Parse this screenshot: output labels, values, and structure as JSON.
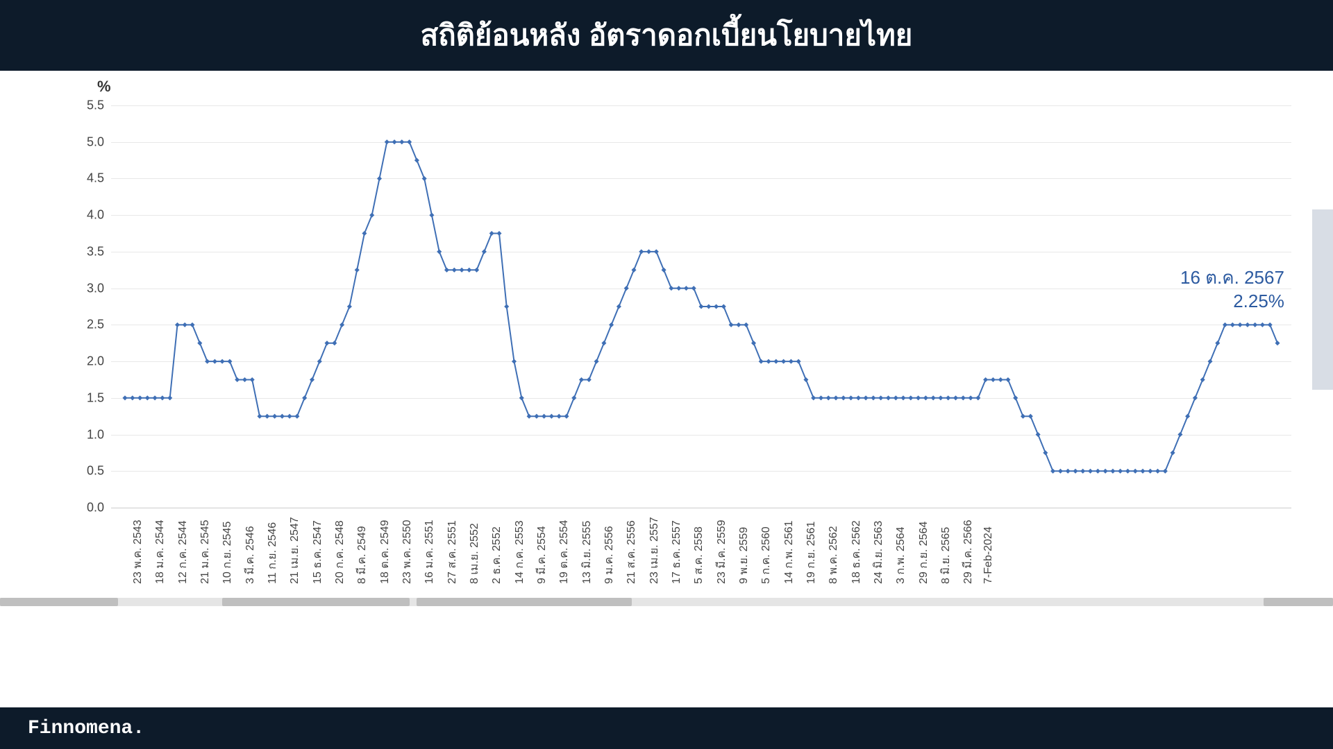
{
  "header": {
    "title": "สถิติย้อนหลัง อัตราดอกเบี้ยนโยบายไทย"
  },
  "footer": {
    "brand": "Finnomena."
  },
  "annotation": {
    "line1": "16 ต.ค. 2567",
    "line2": "2.25%"
  },
  "chart": {
    "type": "line",
    "y_unit": "%",
    "ylim": [
      0.0,
      5.5
    ],
    "ytick_step": 0.5,
    "y_ticks": [
      0.0,
      0.5,
      1.0,
      1.5,
      2.0,
      2.5,
      3.0,
      3.5,
      4.0,
      4.5,
      5.0,
      5.5
    ],
    "background_color": "#ffffff",
    "grid_color": "#e8e8e8",
    "line_color": "#3f6fb5",
    "marker_color": "#3f6fb5",
    "marker_type": "diamond",
    "marker_size": 5,
    "line_width": 2,
    "annotation_color": "#2c5aa0",
    "title_fontsize": 42,
    "label_fontsize": 18,
    "x_labels": [
      "23 พ.ค. 2543",
      "18 ม.ค. 2544",
      "12 ก.ค. 2544",
      "21 ม.ค. 2545",
      "10 ก.ย. 2545",
      "3 มี.ค. 2546",
      "11 ก.ย. 2546",
      "21 เม.ย. 2547",
      "15 ธ.ค. 2547",
      "20 ก.ค. 2548",
      "8 มี.ค. 2549",
      "18 ต.ค. 2549",
      "23 พ.ค. 2550",
      "16 ม.ค. 2551",
      "27 ส.ค. 2551",
      "8 เม.ย. 2552",
      "2 ธ.ค. 2552",
      "14 ก.ค. 2553",
      "9 มี.ค. 2554",
      "19 ต.ค. 2554",
      "13 มิ.ย. 2555",
      "9 ม.ค. 2556",
      "21 ส.ค. 2556",
      "23 เม.ย. 2557",
      "17 ธ.ค. 2557",
      "5 ส.ค. 2558",
      "23 มี.ค. 2559",
      "9 พ.ย. 2559",
      "5 ก.ค. 2560",
      "14 ก.พ. 2561",
      "19 ก.ย. 2561",
      "8 พ.ค. 2562",
      "18 ธ.ค. 2562",
      "24 มิ.ย. 2563",
      "3 ก.พ. 2564",
      "29 ก.ย. 2564",
      "8 มิ.ย. 2565",
      "29 มี.ค. 2566",
      "7-Feb-2024"
    ],
    "x_label_stride": 3,
    "values": [
      1.5,
      1.5,
      1.5,
      1.5,
      1.5,
      1.5,
      1.5,
      2.5,
      2.5,
      2.5,
      2.25,
      2.0,
      2.0,
      2.0,
      2.0,
      1.75,
      1.75,
      1.75,
      1.25,
      1.25,
      1.25,
      1.25,
      1.25,
      1.25,
      1.5,
      1.75,
      2.0,
      2.25,
      2.25,
      2.5,
      2.75,
      3.25,
      3.75,
      4.0,
      4.5,
      5.0,
      5.0,
      5.0,
      5.0,
      4.75,
      4.5,
      4.0,
      3.5,
      3.25,
      3.25,
      3.25,
      3.25,
      3.25,
      3.5,
      3.75,
      3.75,
      2.75,
      2.0,
      1.5,
      1.25,
      1.25,
      1.25,
      1.25,
      1.25,
      1.25,
      1.5,
      1.75,
      1.75,
      2.0,
      2.25,
      2.5,
      2.75,
      3.0,
      3.25,
      3.5,
      3.5,
      3.5,
      3.25,
      3.0,
      3.0,
      3.0,
      3.0,
      2.75,
      2.75,
      2.75,
      2.75,
      2.5,
      2.5,
      2.5,
      2.25,
      2.0,
      2.0,
      2.0,
      2.0,
      2.0,
      2.0,
      1.75,
      1.5,
      1.5,
      1.5,
      1.5,
      1.5,
      1.5,
      1.5,
      1.5,
      1.5,
      1.5,
      1.5,
      1.5,
      1.5,
      1.5,
      1.5,
      1.5,
      1.5,
      1.5,
      1.5,
      1.5,
      1.5,
      1.5,
      1.5,
      1.75,
      1.75,
      1.75,
      1.75,
      1.5,
      1.25,
      1.25,
      1.0,
      0.75,
      0.5,
      0.5,
      0.5,
      0.5,
      0.5,
      0.5,
      0.5,
      0.5,
      0.5,
      0.5,
      0.5,
      0.5,
      0.5,
      0.5,
      0.5,
      0.5,
      0.75,
      1.0,
      1.25,
      1.5,
      1.75,
      2.0,
      2.25,
      2.5,
      2.5,
      2.5,
      2.5,
      2.5,
      2.5,
      2.5,
      2.25
    ]
  },
  "scrollbar": {
    "track_color": "#e5e5e5",
    "thumb_color": "#bfbfbf",
    "segments": [
      [
        0,
        170
      ],
      [
        320,
        270
      ],
      [
        600,
        310
      ],
      [
        1820,
        100
      ]
    ]
  }
}
